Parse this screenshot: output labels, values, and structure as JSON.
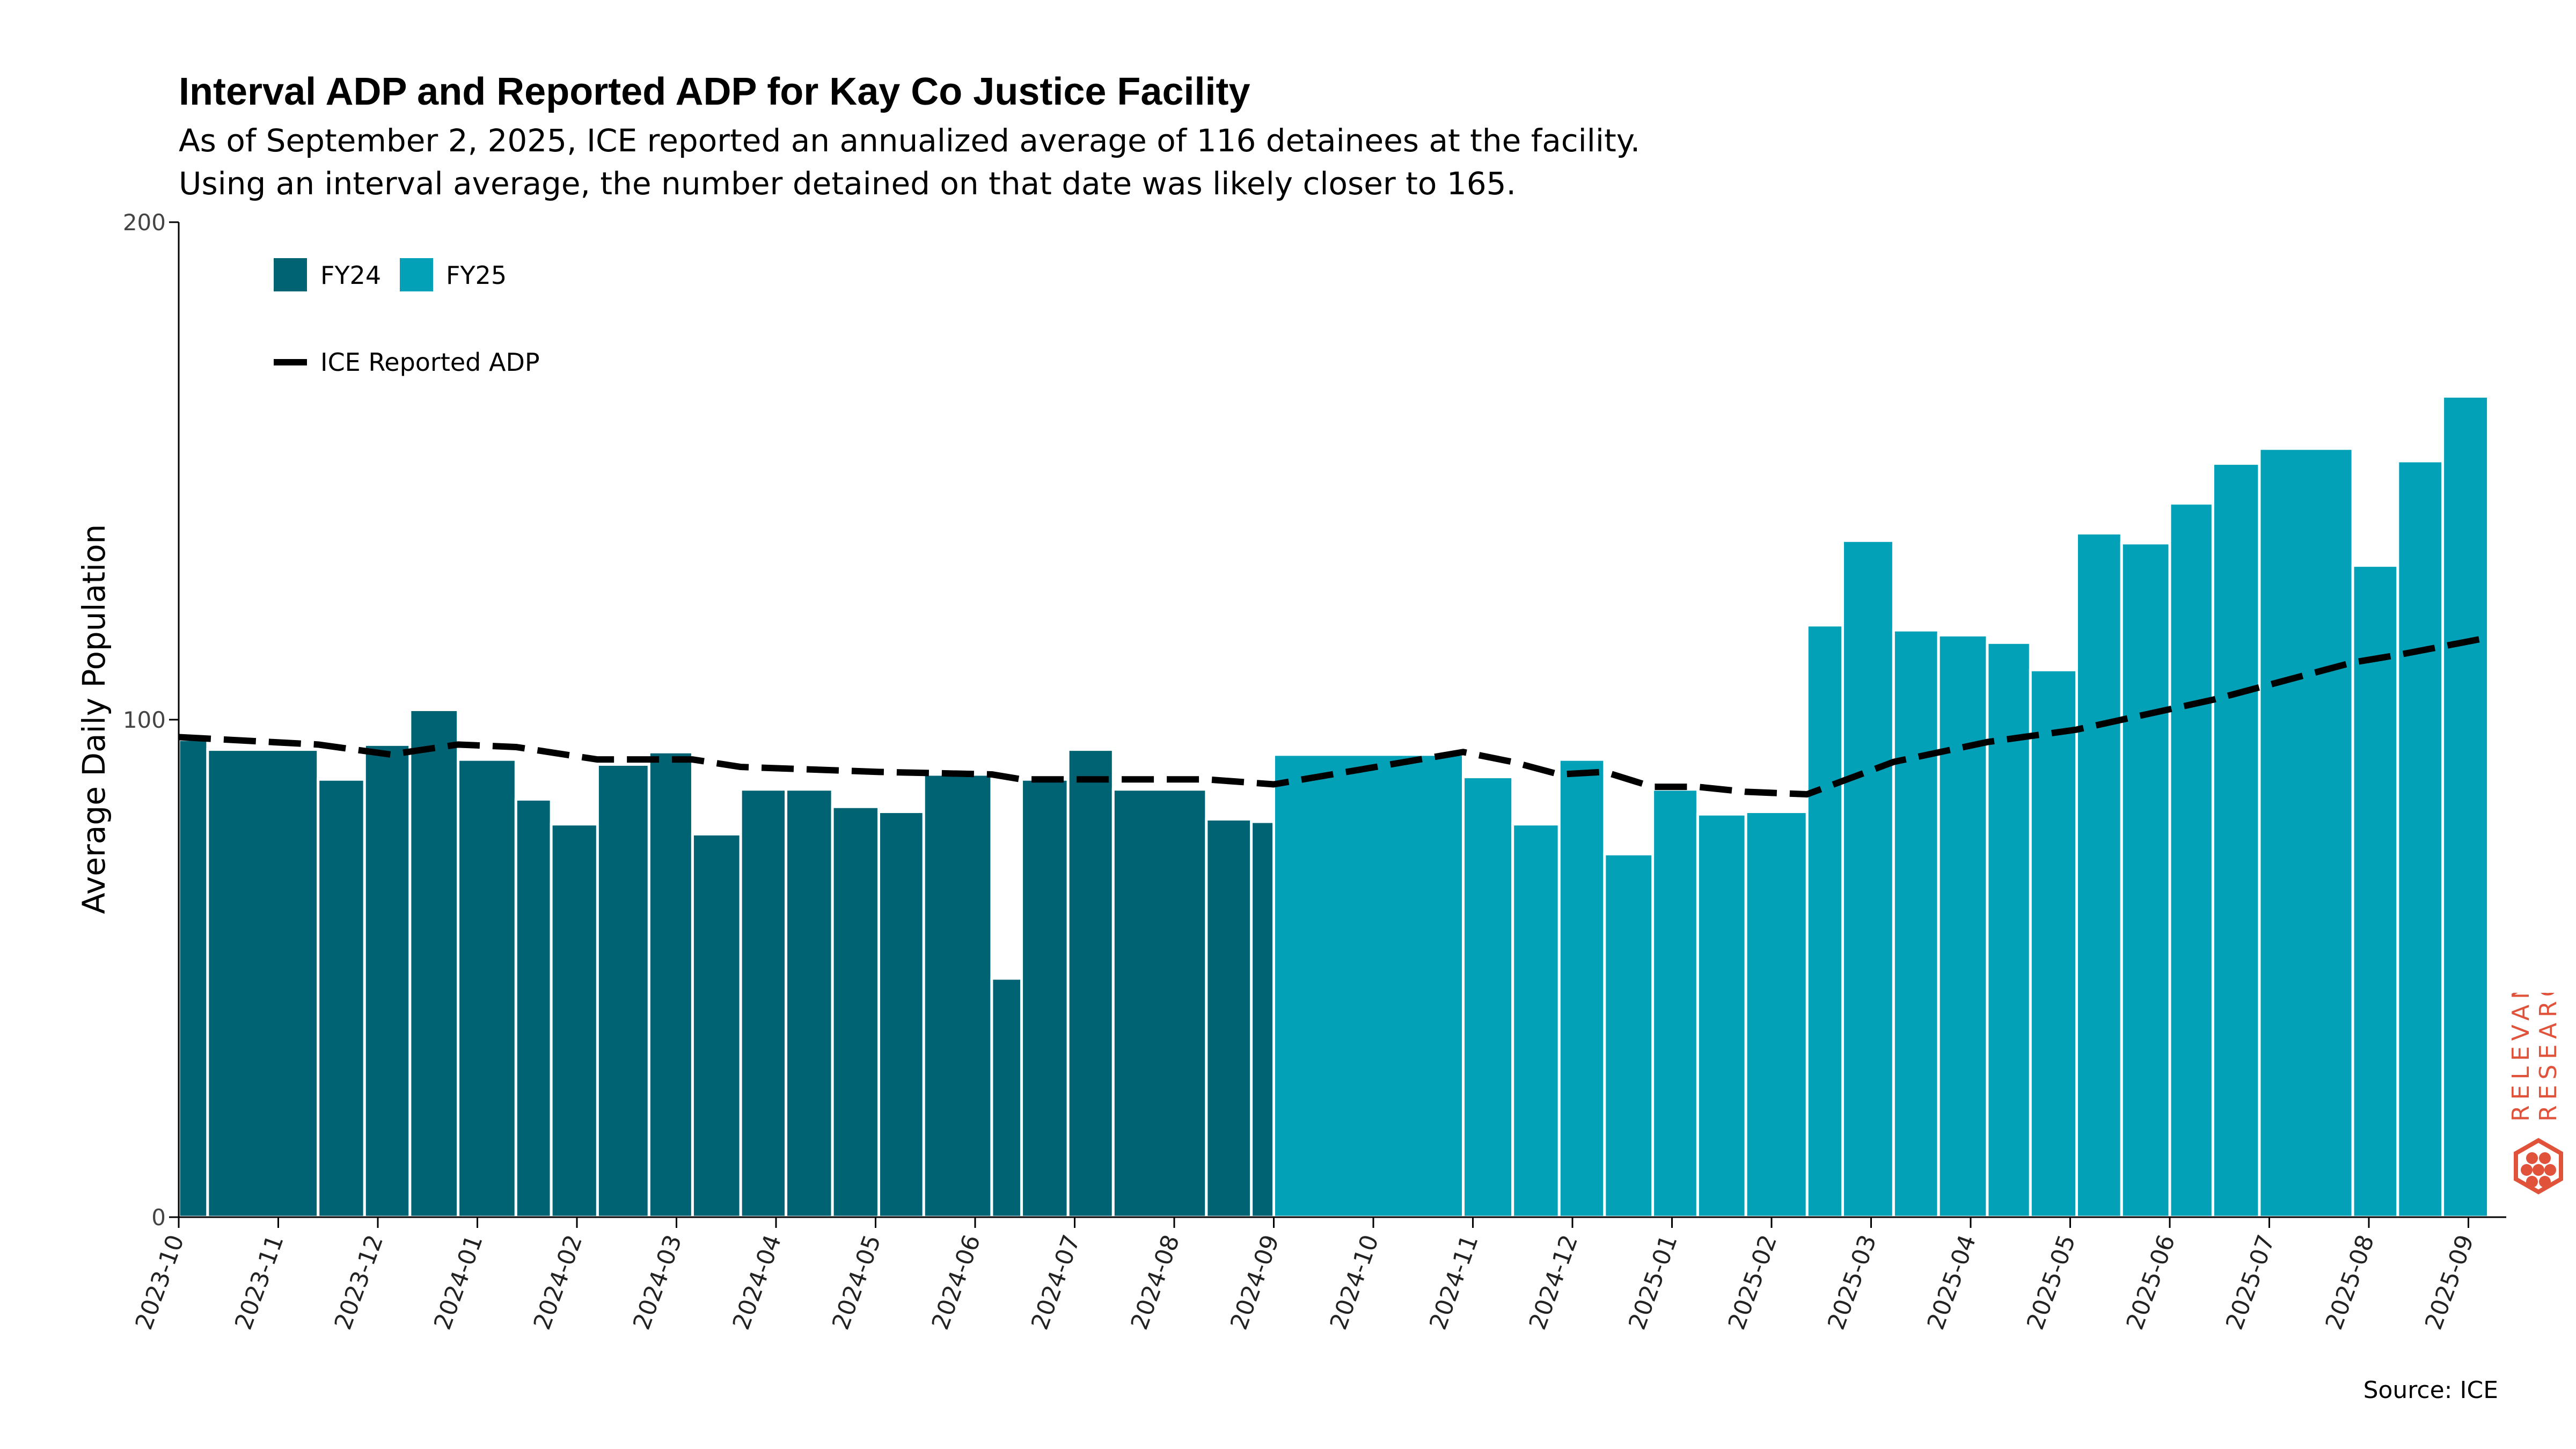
{
  "title": "Interval ADP and Reported ADP for Kay Co Justice Facility",
  "subtitle_lines": [
    "As of September 2, 2025, ICE reported an annualized average of 116 detainees at the facility.",
    "Using an interval average, the number detained on that date was likely closer to 165."
  ],
  "source": "Source: ICE",
  "watermark": {
    "line1": "RELEVANT",
    "line2": "RESEARCH",
    "color": "#e0533a"
  },
  "colors": {
    "FY24": "#006374",
    "FY25": "#03a1b8",
    "line": "#000000"
  },
  "chart_data": {
    "type": "bar",
    "ylabel": "Average Daily Population",
    "ylim": [
      0,
      200
    ],
    "yticks": [
      0,
      100,
      200
    ],
    "xlim": [
      "2023-10-01",
      "2025-09-15"
    ],
    "xticks": [
      "2023-10",
      "2023-11",
      "2023-12",
      "2024-01",
      "2024-02",
      "2024-03",
      "2024-04",
      "2024-05",
      "2024-06",
      "2024-07",
      "2024-08",
      "2024-09",
      "2024-10",
      "2024-11",
      "2024-12",
      "2025-01",
      "2025-02",
      "2025-03",
      "2025-04",
      "2025-05",
      "2025-06",
      "2025-07",
      "2025-08",
      "2025-09"
    ],
    "legend": {
      "placement": "top-left",
      "bar_entries": [
        "FY24",
        "FY25"
      ],
      "line_entry": "ICE Reported ADP"
    },
    "bars": [
      {
        "start": "2023-10-01",
        "end": "2023-10-10",
        "value": 96,
        "fy": "FY24"
      },
      {
        "start": "2023-10-10",
        "end": "2023-11-13",
        "value": 94,
        "fy": "FY24"
      },
      {
        "start": "2023-11-13",
        "end": "2023-11-27",
        "value": 88,
        "fy": "FY24"
      },
      {
        "start": "2023-11-27",
        "end": "2023-12-11",
        "value": 95,
        "fy": "FY24"
      },
      {
        "start": "2023-12-11",
        "end": "2023-12-26",
        "value": 102,
        "fy": "FY24"
      },
      {
        "start": "2023-12-26",
        "end": "2024-01-13",
        "value": 92,
        "fy": "FY24"
      },
      {
        "start": "2024-01-13",
        "end": "2024-01-24",
        "value": 84,
        "fy": "FY24"
      },
      {
        "start": "2024-01-24",
        "end": "2024-02-07",
        "value": 79,
        "fy": "FY24"
      },
      {
        "start": "2024-02-07",
        "end": "2024-02-22",
        "value": 91,
        "fy": "FY24"
      },
      {
        "start": "2024-02-22",
        "end": "2024-03-06",
        "value": 93.5,
        "fy": "FY24"
      },
      {
        "start": "2024-03-06",
        "end": "2024-03-21",
        "value": 77,
        "fy": "FY24"
      },
      {
        "start": "2024-03-21",
        "end": "2024-04-04",
        "value": 86,
        "fy": "FY24"
      },
      {
        "start": "2024-04-04",
        "end": "2024-04-18",
        "value": 86,
        "fy": "FY24"
      },
      {
        "start": "2024-04-18",
        "end": "2024-05-02",
        "value": 82.5,
        "fy": "FY24"
      },
      {
        "start": "2024-05-02",
        "end": "2024-05-16",
        "value": 81.5,
        "fy": "FY24"
      },
      {
        "start": "2024-05-16",
        "end": "2024-06-06",
        "value": 89,
        "fy": "FY24"
      },
      {
        "start": "2024-06-06",
        "end": "2024-06-15",
        "value": 48,
        "fy": "FY24"
      },
      {
        "start": "2024-06-15",
        "end": "2024-06-29",
        "value": 88,
        "fy": "FY24"
      },
      {
        "start": "2024-06-29",
        "end": "2024-07-13",
        "value": 94,
        "fy": "FY24"
      },
      {
        "start": "2024-07-13",
        "end": "2024-08-11",
        "value": 86,
        "fy": "FY24"
      },
      {
        "start": "2024-08-11",
        "end": "2024-08-25",
        "value": 80,
        "fy": "FY24"
      },
      {
        "start": "2024-08-25",
        "end": "2024-09-01",
        "value": 79.5,
        "fy": "FY24"
      },
      {
        "start": "2024-09-01",
        "end": "2024-10-29",
        "value": 93,
        "fy": "FY25"
      },
      {
        "start": "2024-10-29",
        "end": "2024-11-13",
        "value": 88.5,
        "fy": "FY25"
      },
      {
        "start": "2024-11-13",
        "end": "2024-11-27",
        "value": 79,
        "fy": "FY25"
      },
      {
        "start": "2024-11-27",
        "end": "2024-12-11",
        "value": 92,
        "fy": "FY25"
      },
      {
        "start": "2024-12-11",
        "end": "2024-12-26",
        "value": 73,
        "fy": "FY25"
      },
      {
        "start": "2024-12-26",
        "end": "2025-01-09",
        "value": 86,
        "fy": "FY25"
      },
      {
        "start": "2025-01-09",
        "end": "2025-01-24",
        "value": 81,
        "fy": "FY25"
      },
      {
        "start": "2025-01-24",
        "end": "2025-02-11",
        "value": 81.5,
        "fy": "FY25"
      },
      {
        "start": "2025-02-11",
        "end": "2025-02-21",
        "value": 119,
        "fy": "FY25"
      },
      {
        "start": "2025-02-21",
        "end": "2025-03-08",
        "value": 136,
        "fy": "FY25"
      },
      {
        "start": "2025-03-08",
        "end": "2025-03-22",
        "value": 118,
        "fy": "FY25"
      },
      {
        "start": "2025-03-22",
        "end": "2025-04-06",
        "value": 117,
        "fy": "FY25"
      },
      {
        "start": "2025-04-06",
        "end": "2025-04-19",
        "value": 115.5,
        "fy": "FY25"
      },
      {
        "start": "2025-04-19",
        "end": "2025-05-03",
        "value": 110,
        "fy": "FY25"
      },
      {
        "start": "2025-05-03",
        "end": "2025-05-17",
        "value": 137.5,
        "fy": "FY25"
      },
      {
        "start": "2025-05-17",
        "end": "2025-06-01",
        "value": 135.5,
        "fy": "FY25"
      },
      {
        "start": "2025-06-01",
        "end": "2025-06-14",
        "value": 143.5,
        "fy": "FY25"
      },
      {
        "start": "2025-06-14",
        "end": "2025-06-28",
        "value": 151.5,
        "fy": "FY25"
      },
      {
        "start": "2025-06-28",
        "end": "2025-07-27",
        "value": 154.5,
        "fy": "FY25"
      },
      {
        "start": "2025-07-27",
        "end": "2025-08-10",
        "value": 131,
        "fy": "FY25"
      },
      {
        "start": "2025-08-10",
        "end": "2025-08-24",
        "value": 152,
        "fy": "FY25"
      },
      {
        "start": "2025-08-24",
        "end": "2025-09-07",
        "value": 165,
        "fy": "FY25"
      }
    ],
    "line": {
      "name": "ICE Reported ADP",
      "points": [
        {
          "x": "2023-10-01",
          "y": 96.5
        },
        {
          "x": "2023-11-13",
          "y": 95
        },
        {
          "x": "2023-12-05",
          "y": 93
        },
        {
          "x": "2023-12-26",
          "y": 95
        },
        {
          "x": "2024-01-13",
          "y": 94.5
        },
        {
          "x": "2024-02-07",
          "y": 92
        },
        {
          "x": "2024-03-06",
          "y": 92
        },
        {
          "x": "2024-03-21",
          "y": 90.5
        },
        {
          "x": "2024-05-02",
          "y": 89.5
        },
        {
          "x": "2024-06-06",
          "y": 89
        },
        {
          "x": "2024-06-15",
          "y": 88
        },
        {
          "x": "2024-07-13",
          "y": 88
        },
        {
          "x": "2024-08-11",
          "y": 88
        },
        {
          "x": "2024-09-01",
          "y": 87
        },
        {
          "x": "2024-10-29",
          "y": 93.5
        },
        {
          "x": "2024-11-13",
          "y": 91.5
        },
        {
          "x": "2024-11-27",
          "y": 89
        },
        {
          "x": "2024-12-11",
          "y": 89.5
        },
        {
          "x": "2024-12-26",
          "y": 86.5
        },
        {
          "x": "2025-01-09",
          "y": 86.5
        },
        {
          "x": "2025-01-24",
          "y": 85.5
        },
        {
          "x": "2025-02-11",
          "y": 85
        },
        {
          "x": "2025-03-08",
          "y": 91.5
        },
        {
          "x": "2025-04-06",
          "y": 95.5
        },
        {
          "x": "2025-05-03",
          "y": 98
        },
        {
          "x": "2025-06-14",
          "y": 104
        },
        {
          "x": "2025-07-27",
          "y": 111.5
        },
        {
          "x": "2025-08-10",
          "y": 113
        },
        {
          "x": "2025-09-07",
          "y": 116.5
        }
      ]
    }
  }
}
